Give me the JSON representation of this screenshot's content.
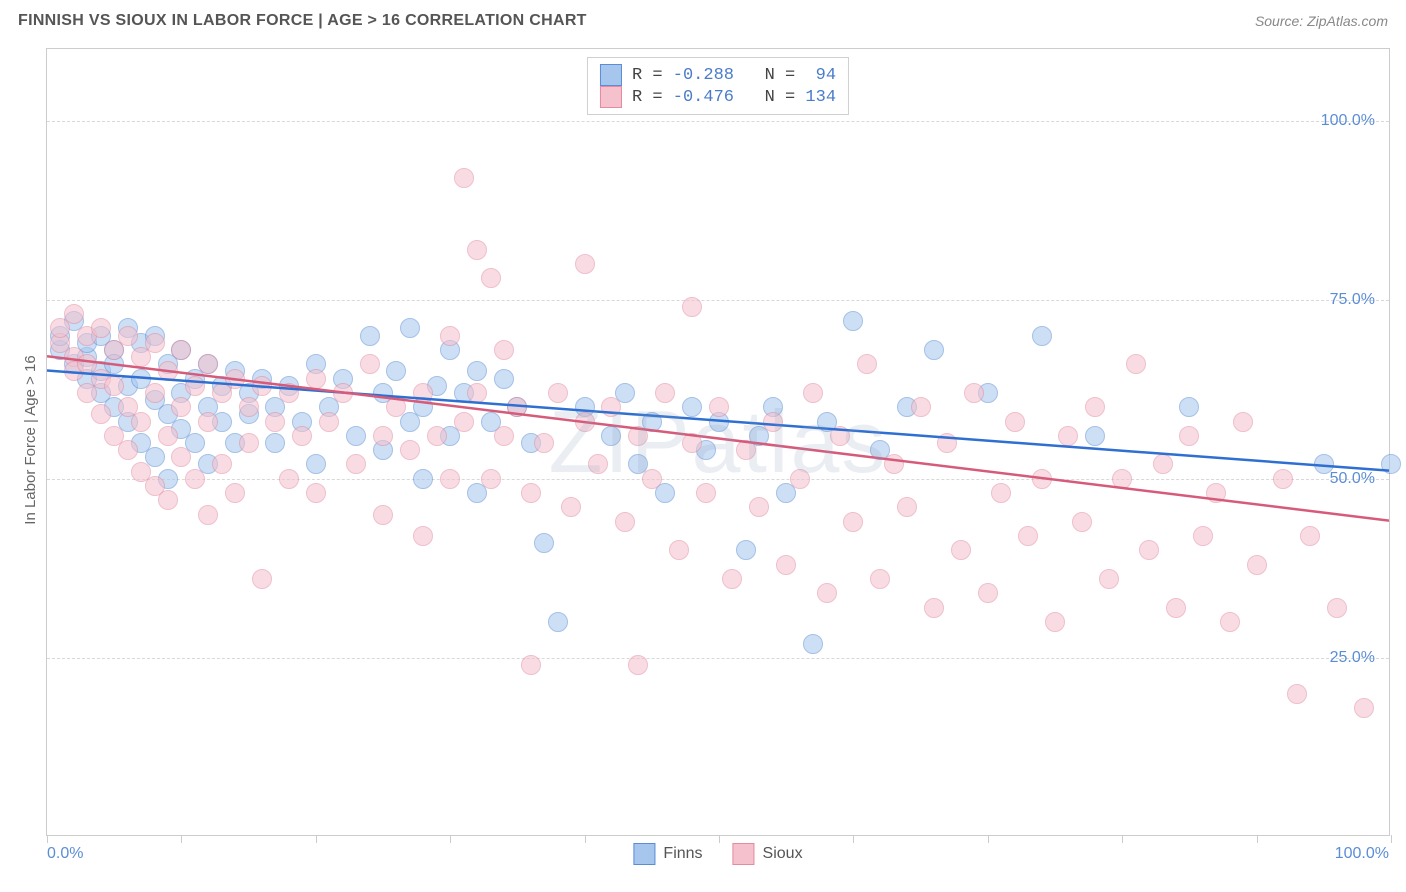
{
  "header": {
    "title": "FINNISH VS SIOUX IN LABOR FORCE | AGE > 16 CORRELATION CHART",
    "source": "Source: ZipAtlas.com"
  },
  "watermark": "ZIPatlas",
  "chart": {
    "type": "scatter",
    "y_axis_title": "In Labor Force | Age > 16",
    "xlim": [
      0,
      100
    ],
    "ylim": [
      0,
      110
    ],
    "x_ticks": [
      0,
      10,
      20,
      30,
      40,
      50,
      60,
      70,
      80,
      90,
      100
    ],
    "x_start_label": "0.0%",
    "x_end_label": "100.0%",
    "y_gridlines": [
      {
        "value": 25,
        "label": "25.0%"
      },
      {
        "value": 50,
        "label": "50.0%"
      },
      {
        "value": 75,
        "label": "75.0%"
      },
      {
        "value": 100,
        "label": "100.0%"
      }
    ],
    "background_color": "#ffffff",
    "grid_color": "#d8d8d8",
    "border_color": "#cccccc",
    "point_radius": 10,
    "point_opacity": 0.55,
    "series": [
      {
        "name": "Finns",
        "fill_color": "#a6c6ee",
        "stroke_color": "#5b8dd6",
        "trend_color": "#2e6fd1",
        "R": "-0.288",
        "N": "94",
        "trend": {
          "x1": 0,
          "y1": 65,
          "x2": 100,
          "y2": 51
        },
        "points": [
          [
            1,
            68
          ],
          [
            1,
            70
          ],
          [
            2,
            66
          ],
          [
            2,
            72
          ],
          [
            3,
            67
          ],
          [
            3,
            69
          ],
          [
            3,
            64
          ],
          [
            4,
            70
          ],
          [
            4,
            62
          ],
          [
            4,
            65
          ],
          [
            5,
            68
          ],
          [
            5,
            60
          ],
          [
            5,
            66
          ],
          [
            6,
            71
          ],
          [
            6,
            63
          ],
          [
            6,
            58
          ],
          [
            7,
            69
          ],
          [
            7,
            64
          ],
          [
            7,
            55
          ],
          [
            8,
            70
          ],
          [
            8,
            61
          ],
          [
            8,
            53
          ],
          [
            9,
            66
          ],
          [
            9,
            59
          ],
          [
            9,
            50
          ],
          [
            10,
            68
          ],
          [
            10,
            62
          ],
          [
            10,
            57
          ],
          [
            11,
            64
          ],
          [
            11,
            55
          ],
          [
            12,
            66
          ],
          [
            12,
            60
          ],
          [
            12,
            52
          ],
          [
            13,
            63
          ],
          [
            13,
            58
          ],
          [
            14,
            65
          ],
          [
            14,
            55
          ],
          [
            15,
            62
          ],
          [
            15,
            59
          ],
          [
            16,
            64
          ],
          [
            17,
            60
          ],
          [
            17,
            55
          ],
          [
            18,
            63
          ],
          [
            19,
            58
          ],
          [
            20,
            66
          ],
          [
            20,
            52
          ],
          [
            21,
            60
          ],
          [
            22,
            64
          ],
          [
            23,
            56
          ],
          [
            24,
            70
          ],
          [
            25,
            62
          ],
          [
            25,
            54
          ],
          [
            26,
            65
          ],
          [
            27,
            58
          ],
          [
            27,
            71
          ],
          [
            28,
            60
          ],
          [
            28,
            50
          ],
          [
            29,
            63
          ],
          [
            30,
            68
          ],
          [
            30,
            56
          ],
          [
            31,
            62
          ],
          [
            32,
            65
          ],
          [
            32,
            48
          ],
          [
            33,
            58
          ],
          [
            34,
            64
          ],
          [
            35,
            60
          ],
          [
            36,
            55
          ],
          [
            37,
            41
          ],
          [
            38,
            30
          ],
          [
            40,
            60
          ],
          [
            42,
            56
          ],
          [
            43,
            62
          ],
          [
            44,
            52
          ],
          [
            45,
            58
          ],
          [
            46,
            48
          ],
          [
            48,
            60
          ],
          [
            49,
            54
          ],
          [
            50,
            58
          ],
          [
            52,
            40
          ],
          [
            53,
            56
          ],
          [
            54,
            60
          ],
          [
            55,
            48
          ],
          [
            57,
            27
          ],
          [
            58,
            58
          ],
          [
            60,
            72
          ],
          [
            62,
            54
          ],
          [
            64,
            60
          ],
          [
            66,
            68
          ],
          [
            70,
            62
          ],
          [
            74,
            70
          ],
          [
            78,
            56
          ],
          [
            85,
            60
          ],
          [
            95,
            52
          ],
          [
            100,
            52
          ]
        ]
      },
      {
        "name": "Sioux",
        "fill_color": "#f5c1cd",
        "stroke_color": "#e38ba1",
        "trend_color": "#d65b7a",
        "R": "-0.476",
        "N": "134",
        "trend": {
          "x1": 0,
          "y1": 67,
          "x2": 100,
          "y2": 44
        },
        "points": [
          [
            1,
            69
          ],
          [
            1,
            71
          ],
          [
            2,
            67
          ],
          [
            2,
            73
          ],
          [
            2,
            65
          ],
          [
            3,
            70
          ],
          [
            3,
            66
          ],
          [
            3,
            62
          ],
          [
            4,
            71
          ],
          [
            4,
            64
          ],
          [
            4,
            59
          ],
          [
            5,
            68
          ],
          [
            5,
            63
          ],
          [
            5,
            56
          ],
          [
            6,
            70
          ],
          [
            6,
            60
          ],
          [
            6,
            54
          ],
          [
            7,
            67
          ],
          [
            7,
            58
          ],
          [
            7,
            51
          ],
          [
            8,
            69
          ],
          [
            8,
            62
          ],
          [
            8,
            49
          ],
          [
            9,
            65
          ],
          [
            9,
            56
          ],
          [
            9,
            47
          ],
          [
            10,
            68
          ],
          [
            10,
            60
          ],
          [
            10,
            53
          ],
          [
            11,
            63
          ],
          [
            11,
            50
          ],
          [
            12,
            66
          ],
          [
            12,
            58
          ],
          [
            12,
            45
          ],
          [
            13,
            62
          ],
          [
            13,
            52
          ],
          [
            14,
            64
          ],
          [
            14,
            48
          ],
          [
            15,
            60
          ],
          [
            15,
            55
          ],
          [
            16,
            63
          ],
          [
            16,
            36
          ],
          [
            17,
            58
          ],
          [
            18,
            62
          ],
          [
            18,
            50
          ],
          [
            19,
            56
          ],
          [
            20,
            64
          ],
          [
            20,
            48
          ],
          [
            21,
            58
          ],
          [
            22,
            62
          ],
          [
            23,
            52
          ],
          [
            24,
            66
          ],
          [
            25,
            56
          ],
          [
            25,
            45
          ],
          [
            26,
            60
          ],
          [
            27,
            54
          ],
          [
            28,
            62
          ],
          [
            28,
            42
          ],
          [
            29,
            56
          ],
          [
            30,
            70
          ],
          [
            30,
            50
          ],
          [
            31,
            58
          ],
          [
            31,
            92
          ],
          [
            32,
            62
          ],
          [
            32,
            82
          ],
          [
            33,
            50
          ],
          [
            33,
            78
          ],
          [
            34,
            56
          ],
          [
            34,
            68
          ],
          [
            35,
            60
          ],
          [
            36,
            48
          ],
          [
            36,
            24
          ],
          [
            37,
            55
          ],
          [
            38,
            62
          ],
          [
            39,
            46
          ],
          [
            40,
            58
          ],
          [
            40,
            80
          ],
          [
            41,
            52
          ],
          [
            42,
            60
          ],
          [
            43,
            44
          ],
          [
            44,
            56
          ],
          [
            44,
            24
          ],
          [
            45,
            50
          ],
          [
            46,
            62
          ],
          [
            47,
            40
          ],
          [
            48,
            55
          ],
          [
            48,
            74
          ],
          [
            49,
            48
          ],
          [
            50,
            60
          ],
          [
            51,
            36
          ],
          [
            52,
            54
          ],
          [
            53,
            46
          ],
          [
            54,
            58
          ],
          [
            55,
            38
          ],
          [
            56,
            50
          ],
          [
            57,
            62
          ],
          [
            58,
            34
          ],
          [
            59,
            56
          ],
          [
            60,
            44
          ],
          [
            61,
            66
          ],
          [
            62,
            36
          ],
          [
            63,
            52
          ],
          [
            64,
            46
          ],
          [
            65,
            60
          ],
          [
            66,
            32
          ],
          [
            67,
            55
          ],
          [
            68,
            40
          ],
          [
            69,
            62
          ],
          [
            70,
            34
          ],
          [
            71,
            48
          ],
          [
            72,
            58
          ],
          [
            73,
            42
          ],
          [
            74,
            50
          ],
          [
            75,
            30
          ],
          [
            76,
            56
          ],
          [
            77,
            44
          ],
          [
            78,
            60
          ],
          [
            79,
            36
          ],
          [
            80,
            50
          ],
          [
            81,
            66
          ],
          [
            82,
            40
          ],
          [
            83,
            52
          ],
          [
            84,
            32
          ],
          [
            85,
            56
          ],
          [
            86,
            42
          ],
          [
            87,
            48
          ],
          [
            88,
            30
          ],
          [
            89,
            58
          ],
          [
            90,
            38
          ],
          [
            92,
            50
          ],
          [
            93,
            20
          ],
          [
            94,
            42
          ],
          [
            96,
            32
          ],
          [
            98,
            18
          ]
        ]
      }
    ],
    "legend_bottom": [
      {
        "label": "Finns",
        "series_index": 0
      },
      {
        "label": "Sioux",
        "series_index": 1
      }
    ]
  }
}
